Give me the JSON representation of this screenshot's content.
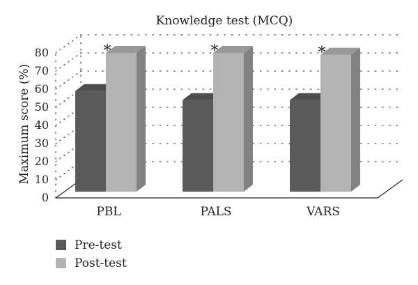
{
  "chart_data": {
    "type": "bar",
    "title": "Knowledge test (MCQ)",
    "xlabel": "",
    "ylabel": "Maximum score (%)",
    "categories": [
      "PBL",
      "PALS",
      "VARS"
    ],
    "series": [
      {
        "name": "Pre-test",
        "values": [
          59,
          54,
          54
        ],
        "color": "#5a5a5a"
      },
      {
        "name": "Post-test",
        "values": [
          80,
          80,
          79
        ],
        "color": "#b3b3b3"
      }
    ],
    "annotations": [
      "*",
      "*",
      "*"
    ],
    "yticks": [
      0,
      10,
      20,
      30,
      40,
      50,
      60,
      70,
      80
    ],
    "ylim": [
      0,
      80
    ],
    "grid": true,
    "legend": "bottom-left",
    "style": "3d"
  }
}
